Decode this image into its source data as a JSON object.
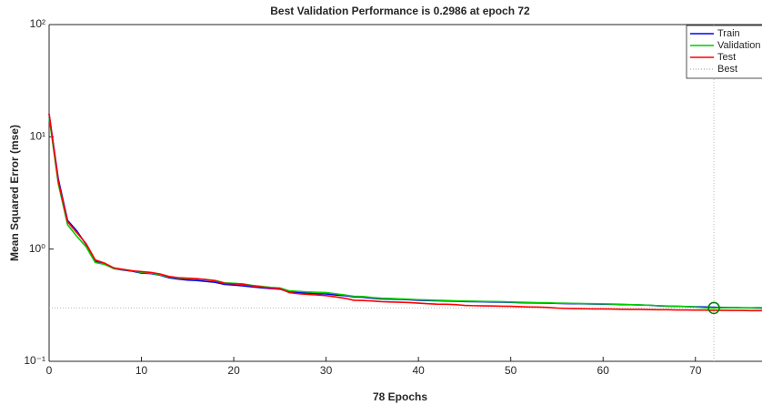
{
  "chart_data": {
    "type": "line",
    "title": "Best Validation Performance is 0.2986 at epoch 72",
    "x_label": "78 Epochs",
    "y_label": "Mean Squared Error  (mse)",
    "xlim": [
      0,
      78
    ],
    "xticks": [
      0,
      10,
      20,
      30,
      40,
      50,
      60,
      70
    ],
    "ylim": [
      0.1,
      100
    ],
    "log_y": true,
    "yticks": [
      {
        "value": 0.1,
        "label": "10⁻¹"
      },
      {
        "value": 1,
        "label": "10⁰"
      },
      {
        "value": 10,
        "label": "10¹"
      },
      {
        "value": 100,
        "label": "10²"
      }
    ],
    "legend": "upper right",
    "x": [
      0,
      1,
      2,
      3,
      4,
      5,
      6,
      7,
      8,
      9,
      10,
      11,
      12,
      13,
      14,
      15,
      16,
      17,
      18,
      19,
      20,
      21,
      22,
      23,
      24,
      25,
      26,
      27,
      28,
      29,
      30,
      31,
      32,
      33,
      34,
      35,
      36,
      37,
      38,
      39,
      40,
      41,
      42,
      43,
      44,
      45,
      46,
      47,
      48,
      49,
      50,
      51,
      52,
      53,
      54,
      55,
      56,
      57,
      58,
      59,
      60,
      61,
      62,
      63,
      64,
      65,
      66,
      67,
      68,
      69,
      70,
      71,
      72,
      73,
      74,
      75,
      76,
      77,
      78
    ],
    "series": [
      {
        "name": "Train",
        "color": "#0000ff",
        "values": [
          16,
          4.2,
          1.8,
          1.45,
          1.1,
          0.78,
          0.74,
          0.67,
          0.65,
          0.635,
          0.61,
          0.605,
          0.585,
          0.555,
          0.54,
          0.53,
          0.525,
          0.515,
          0.505,
          0.485,
          0.478,
          0.47,
          0.46,
          0.452,
          0.445,
          0.44,
          0.415,
          0.41,
          0.405,
          0.4,
          0.398,
          0.39,
          0.385,
          0.375,
          0.372,
          0.365,
          0.36,
          0.358,
          0.356,
          0.354,
          0.35,
          0.348,
          0.346,
          0.345,
          0.343,
          0.341,
          0.34,
          0.339,
          0.338,
          0.337,
          0.335,
          0.333,
          0.332,
          0.331,
          0.33,
          0.328,
          0.327,
          0.326,
          0.325,
          0.324,
          0.323,
          0.322,
          0.32,
          0.319,
          0.318,
          0.316,
          0.312,
          0.31,
          0.309,
          0.308,
          0.306,
          0.305,
          0.303,
          0.302,
          0.301,
          0.3,
          0.299,
          0.298,
          0.297
        ]
      },
      {
        "name": "Validation",
        "color": "#00cc00",
        "values": [
          15,
          3.8,
          1.65,
          1.3,
          1.05,
          0.76,
          0.73,
          0.67,
          0.655,
          0.64,
          0.62,
          0.61,
          0.59,
          0.565,
          0.55,
          0.545,
          0.54,
          0.535,
          0.525,
          0.5,
          0.495,
          0.49,
          0.475,
          0.465,
          0.455,
          0.45,
          0.425,
          0.42,
          0.415,
          0.412,
          0.41,
          0.4,
          0.39,
          0.38,
          0.378,
          0.37,
          0.365,
          0.363,
          0.36,
          0.357,
          0.354,
          0.352,
          0.35,
          0.348,
          0.346,
          0.344,
          0.343,
          0.342,
          0.341,
          0.34,
          0.338,
          0.336,
          0.335,
          0.333,
          0.332,
          0.33,
          0.329,
          0.328,
          0.327,
          0.326,
          0.325,
          0.324,
          0.322,
          0.32,
          0.318,
          0.316,
          0.313,
          0.311,
          0.309,
          0.307,
          0.305,
          0.3,
          0.2986,
          0.3,
          0.301,
          0.3,
          0.3,
          0.301,
          0.3
        ]
      },
      {
        "name": "Test",
        "color": "#ff0000",
        "values": [
          16,
          4,
          1.75,
          1.4,
          1.12,
          0.8,
          0.75,
          0.68,
          0.66,
          0.64,
          0.63,
          0.62,
          0.6,
          0.57,
          0.555,
          0.55,
          0.545,
          0.535,
          0.52,
          0.495,
          0.49,
          0.485,
          0.47,
          0.46,
          0.45,
          0.445,
          0.41,
          0.4,
          0.395,
          0.39,
          0.385,
          0.375,
          0.365,
          0.35,
          0.348,
          0.345,
          0.34,
          0.338,
          0.336,
          0.334,
          0.33,
          0.326,
          0.323,
          0.322,
          0.32,
          0.315,
          0.313,
          0.312,
          0.311,
          0.31,
          0.309,
          0.307,
          0.305,
          0.304,
          0.302,
          0.298,
          0.296,
          0.295,
          0.294,
          0.293,
          0.293,
          0.292,
          0.291,
          0.29,
          0.29,
          0.289,
          0.288,
          0.288,
          0.287,
          0.287,
          0.286,
          0.286,
          0.285,
          0.285,
          0.284,
          0.284,
          0.283,
          0.283,
          0.282
        ]
      }
    ],
    "best": {
      "name": "Best",
      "color": "#bbbbbb",
      "marker_color": "#008000",
      "x": 72,
      "value": 0.2986
    }
  }
}
